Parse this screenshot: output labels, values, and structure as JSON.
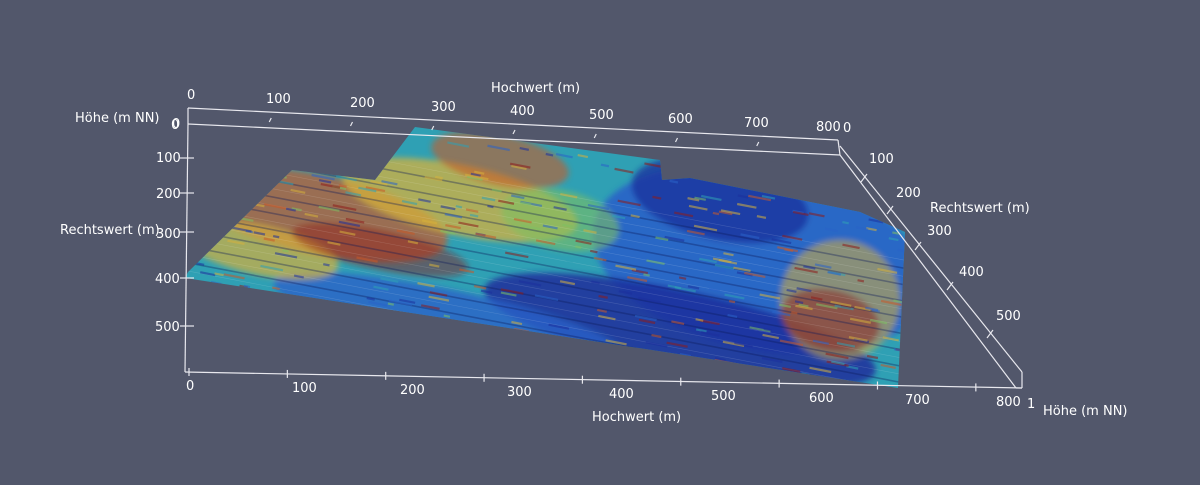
{
  "scene": {
    "background": "#52576b",
    "axis_color": "#e8e8ee"
  },
  "axes": {
    "top_hochwert": {
      "title": "Hochwert (m)",
      "ticks": [
        "0",
        "100",
        "200",
        "300",
        "400",
        "500",
        "600",
        "700",
        "800"
      ]
    },
    "bottom_hochwert": {
      "title": "Hochwert (m)",
      "ticks": [
        "0",
        "100",
        "200",
        "300",
        "400",
        "500",
        "600",
        "700",
        "800"
      ]
    },
    "left_rechtswert": {
      "title": "Rechtswert (m)",
      "ticks": [
        "0",
        "100",
        "200",
        "300",
        "400",
        "500"
      ]
    },
    "right_rechtswert": {
      "title": "Rechtswert (m)",
      "ticks": [
        "0",
        "100",
        "200",
        "300",
        "400",
        "500"
      ]
    },
    "left_hoehe": {
      "title": "Höhe (m NN)",
      "tick": "0"
    },
    "right_hoehe": {
      "title": "Höhe (m NN)",
      "tick": "1"
    }
  },
  "colormap": [
    "#1c2f9c",
    "#2a62c8",
    "#2fa0b4",
    "#7dbf62",
    "#d6b13c",
    "#c85a28",
    "#8e1c1a"
  ]
}
